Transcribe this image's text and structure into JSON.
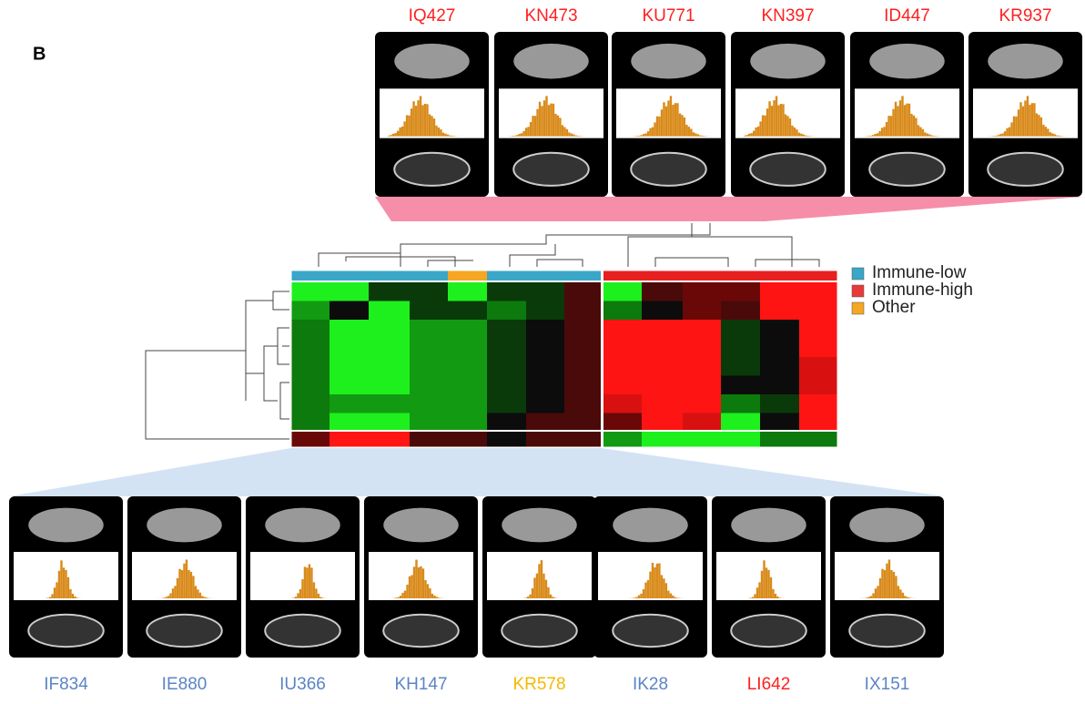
{
  "panel_label": "B",
  "top_samples": [
    {
      "name": "IQ427",
      "color": "#ff2020"
    },
    {
      "name": "KN473",
      "color": "#ff2020"
    },
    {
      "name": "KU771",
      "color": "#ff2020"
    },
    {
      "name": "KN397",
      "color": "#ff2020"
    },
    {
      "name": "ID447",
      "color": "#ff2020"
    },
    {
      "name": "KR937",
      "color": "#ff2020"
    }
  ],
  "bottom_samples": [
    {
      "name": "IF834",
      "color": "#5b84c4"
    },
    {
      "name": "IE880",
      "color": "#5b84c4"
    },
    {
      "name": "IU366",
      "color": "#5b84c4"
    },
    {
      "name": "KH147",
      "color": "#5b84c4"
    },
    {
      "name": "KR578",
      "color": "#f5b800"
    },
    {
      "name": "IK28",
      "color": "#5b84c4"
    },
    {
      "name": "LI642",
      "color": "#ff2020"
    },
    {
      "name": "IX151",
      "color": "#5b84c4"
    }
  ],
  "legend": [
    {
      "name": "Immune-low",
      "color": "#3aa6c8"
    },
    {
      "name": "Immune-high",
      "color": "#e83a3a"
    },
    {
      "name": "Other",
      "color": "#f5a623"
    }
  ]
}
